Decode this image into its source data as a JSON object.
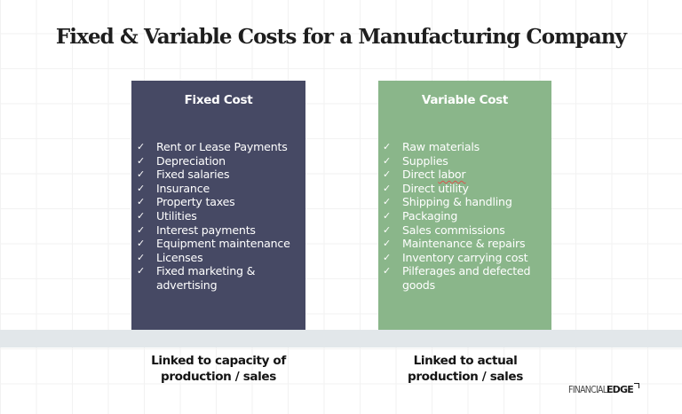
{
  "title": "Fixed & Variable Costs for a Manufacturing Company",
  "colors": {
    "fixed_card": "#464964",
    "variable_card": "#8ab68a",
    "band": "#e2e7ea",
    "title_text": "#1e1e1e"
  },
  "check_icon": "✓",
  "fixed": {
    "heading": "Fixed Cost",
    "items": [
      "Rent or Lease Payments",
      "Depreciation",
      "Fixed salaries",
      "Insurance",
      "Property taxes",
      "Utilities",
      "Interest payments",
      "Equipment maintenance",
      "Licenses",
      "Fixed marketing & advertising"
    ],
    "caption_line1": "Linked to capacity of",
    "caption_line2": "production / sales"
  },
  "variable": {
    "heading": "Variable Cost",
    "items": [
      "Raw materials",
      "Supplies",
      "Direct labor",
      "Direct utility",
      "Shipping & handling",
      "Packaging",
      "Sales commissions",
      "Maintenance & repairs",
      "Inventory carrying cost",
      "Pilferages and defected goods"
    ],
    "item_2_prefix": "Direct ",
    "item_2_underlined": "labor",
    "caption_line1": "Linked to actual",
    "caption_line2": "production / sales"
  },
  "logo": {
    "thin": "FINANCIAL",
    "bold": "EDGE"
  }
}
